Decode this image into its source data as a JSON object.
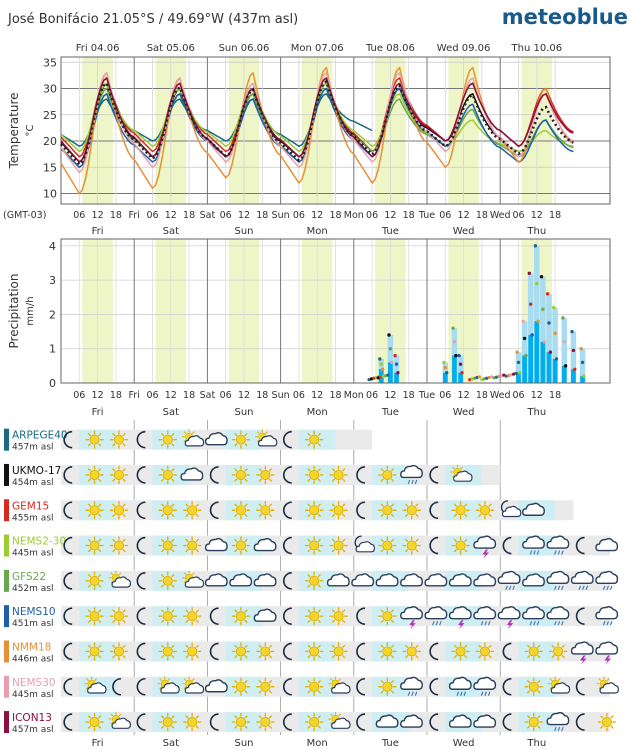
{
  "header": {
    "location": "José Bonifácio",
    "coords": "21.05°S / 49.69°W (437m asl)",
    "brand": "meteoblue",
    "timezone": "(GMT-03)"
  },
  "days": [
    {
      "full": "Fri 04.06",
      "short": "Fri"
    },
    {
      "full": "Sat 05.06",
      "short": "Sat"
    },
    {
      "full": "Sun 06.06",
      "short": "Sun"
    },
    {
      "full": "Mon 07.06",
      "short": "Mon"
    },
    {
      "full": "Tue 08.06",
      "short": "Tue"
    },
    {
      "full": "Wed 09.06",
      "short": "Wed"
    },
    {
      "full": "Thu 10.06",
      "short": "Thu"
    }
  ],
  "hour_labels": [
    "06",
    "12",
    "18"
  ],
  "models": [
    {
      "name": "ARPEGE40",
      "elev": "457m asl",
      "color": "#1a6a80",
      "hours": 102
    },
    {
      "name": "UKMO-17",
      "elev": "454m asl",
      "color": "#111111",
      "hours": 144
    },
    {
      "name": "GEM15",
      "elev": "455m asl",
      "color": "#d42a20",
      "hours": 168
    },
    {
      "name": "NEMS2-30",
      "elev": "445m asl",
      "color": "#9acd32",
      "hours": 180
    },
    {
      "name": "GFS22",
      "elev": "452m asl",
      "color": "#6aa84f",
      "hours": 180
    },
    {
      "name": "NEMS10",
      "elev": "451m asl",
      "color": "#1f5fa8",
      "hours": 180
    },
    {
      "name": "NMM18",
      "elev": "446m asl",
      "color": "#e69138",
      "hours": 180
    },
    {
      "name": "NEMS30",
      "elev": "445m asl",
      "color": "#e8a0b0",
      "hours": 180
    },
    {
      "name": "ICON13",
      "elev": "457m asl",
      "color": "#8b1040",
      "hours": 180
    }
  ],
  "chart_data": [
    {
      "type": "line",
      "ylabel": "Temperature",
      "yunit": "°C",
      "ylim": [
        8,
        36
      ],
      "yticks": [
        10,
        15,
        20,
        25,
        30,
        35
      ],
      "x_unit": "hours from Fri 04.06 00:00",
      "xlim": [
        0,
        180
      ],
      "daily_min_max": [
        {
          "day": "Fri 04.06",
          "min": 16,
          "max": 31
        },
        {
          "day": "Sat 05.06",
          "min": 17,
          "max": 30
        },
        {
          "day": "Sun 06.06",
          "min": 17,
          "max": 29
        },
        {
          "day": "Mon 07.06",
          "min": 17,
          "max": 30
        },
        {
          "day": "Tue 08.06",
          "min": 18,
          "max": 31
        },
        {
          "day": "Wed 09.06",
          "min": 19,
          "max": 30
        },
        {
          "day": "Thu 10.06",
          "min": 18,
          "max": 27
        }
      ],
      "series": [
        {
          "name": "ARPEGE40",
          "color": "#1a6a80",
          "mins": [
            19,
            20,
            20,
            19,
            22,
            21,
            18
          ],
          "maxs": [
            28,
            28,
            28,
            29,
            28,
            25,
            22
          ]
        },
        {
          "name": "UKMO-17",
          "color": "#111111",
          "mins": [
            16,
            17,
            17,
            17,
            18,
            20,
            18
          ],
          "maxs": [
            31,
            30,
            29,
            31,
            30,
            29,
            28
          ]
        },
        {
          "name": "GEM15",
          "color": "#d42a20",
          "mins": [
            17,
            18,
            18,
            17,
            18,
            20,
            19
          ],
          "maxs": [
            32,
            31,
            30,
            32,
            32,
            31,
            30
          ]
        },
        {
          "name": "NEMS2-30",
          "color": "#9acd32",
          "mins": [
            18,
            19,
            19,
            18,
            19,
            19,
            18
          ],
          "maxs": [
            31,
            30,
            30,
            31,
            29,
            24,
            22
          ]
        },
        {
          "name": "GFS22",
          "color": "#6aa84f",
          "mins": [
            15,
            17,
            17,
            16,
            18,
            19,
            17
          ],
          "maxs": [
            30,
            29,
            29,
            30,
            28,
            26,
            24
          ]
        },
        {
          "name": "NEMS10",
          "color": "#1f5fa8",
          "mins": [
            15,
            16,
            17,
            16,
            17,
            19,
            16
          ],
          "maxs": [
            29,
            29,
            28,
            30,
            30,
            27,
            24
          ]
        },
        {
          "name": "NMM18",
          "color": "#e69138",
          "mins": [
            10,
            11,
            13,
            12,
            12,
            15,
            16
          ],
          "maxs": [
            33,
            32,
            33,
            34,
            34,
            34,
            30
          ]
        },
        {
          "name": "NEMS30",
          "color": "#e8a0b0",
          "mins": [
            14,
            15,
            16,
            15,
            16,
            18,
            17
          ],
          "maxs": [
            33,
            32,
            31,
            33,
            33,
            32,
            29
          ]
        },
        {
          "name": "ICON13",
          "color": "#8b1040",
          "mins": [
            16,
            17,
            17,
            17,
            17,
            20,
            19
          ],
          "maxs": [
            32,
            31,
            30,
            32,
            31,
            31,
            29
          ]
        }
      ]
    },
    {
      "type": "bar",
      "ylabel": "Precipitation",
      "yunit": "mm/h",
      "ylim": [
        0,
        4.2
      ],
      "yticks": [
        0,
        1,
        2,
        3,
        4
      ],
      "x_unit": "hours from Fri 04.06 00:00",
      "events": [
        {
          "hour": 105,
          "low": 0.4,
          "high": 0.7
        },
        {
          "hour": 108,
          "low": 0.6,
          "high": 1.4
        },
        {
          "hour": 110,
          "low": 0.3,
          "high": 0.8
        },
        {
          "hour": 126,
          "low": 0.3,
          "high": 0.6
        },
        {
          "hour": 129,
          "low": 0.8,
          "high": 1.6
        },
        {
          "hour": 131,
          "low": 0.3,
          "high": 0.8
        },
        {
          "hour": 150,
          "low": 0.3,
          "high": 0.9
        },
        {
          "hour": 152,
          "low": 0.8,
          "high": 1.8
        },
        {
          "hour": 154,
          "low": 1.4,
          "high": 3.2
        },
        {
          "hour": 156,
          "low": 1.8,
          "high": 4.0
        },
        {
          "hour": 158,
          "low": 1.2,
          "high": 3.1
        },
        {
          "hour": 160,
          "low": 0.9,
          "high": 2.6
        },
        {
          "hour": 162,
          "low": 0.7,
          "high": 2.2
        },
        {
          "hour": 165,
          "low": 0.5,
          "high": 1.9
        },
        {
          "hour": 168,
          "low": 0.4,
          "high": 1.5
        },
        {
          "hour": 171,
          "low": 0.2,
          "high": 1.0
        }
      ]
    }
  ],
  "weather_rows": [
    {
      "model": "ARPEGE40",
      "icons": [
        "moon",
        "sun",
        "sun",
        "moon",
        "sun",
        "partly",
        "cloud",
        "sun",
        "partly",
        "moon",
        "sun"
      ]
    },
    {
      "model": "UKMO-17",
      "icons": [
        "moon",
        "sun",
        "sun",
        "moon",
        "sun",
        "cloud",
        "moon",
        "sun",
        "sun",
        "moon",
        "sun",
        "sun",
        "moon",
        "sun",
        "rain",
        "moon",
        "partly"
      ]
    },
    {
      "model": "GEM15",
      "icons": [
        "moon",
        "sun",
        "sun",
        "moon",
        "sun",
        "sun",
        "moon",
        "sun",
        "sun",
        "moon",
        "sun",
        "sun",
        "moon",
        "sun",
        "sun",
        "moon",
        "sun",
        "sun",
        "nightcloud",
        "cloud"
      ]
    },
    {
      "model": "NEMS2-30",
      "icons": [
        "moon",
        "sun",
        "sun",
        "moon",
        "sun",
        "sun",
        "cloud",
        "sun",
        "cloud",
        "moon",
        "sun",
        "sun",
        "nightcloud",
        "sun",
        "sun",
        "moon",
        "sun",
        "storm",
        "moon",
        "rain",
        "rain",
        "moon",
        "cloud"
      ]
    },
    {
      "model": "GFS22",
      "icons": [
        "moon",
        "sun",
        "partly",
        "moon",
        "sun",
        "partly",
        "cloud",
        "cloud",
        "cloud",
        "moon",
        "sun",
        "cloud",
        "cloud",
        "cloud",
        "cloud",
        "cloud",
        "cloud",
        "cloud",
        "rain",
        "cloud",
        "rain",
        "rain",
        "rain"
      ]
    },
    {
      "model": "NEMS10",
      "icons": [
        "moon",
        "sun",
        "sun",
        "moon",
        "sun",
        "sun",
        "moon",
        "sun",
        "cloud",
        "moon",
        "sun",
        "sun",
        "moon",
        "sun",
        "storm",
        "rain",
        "storm",
        "rain",
        "storm",
        "rain",
        "rain",
        "moon",
        "rain"
      ]
    },
    {
      "model": "NMM18",
      "icons": [
        "moon",
        "sun",
        "sun",
        "moon",
        "sun",
        "sun",
        "moon",
        "sun",
        "sun",
        "moon",
        "sun",
        "sun",
        "moon",
        "sun",
        "sun",
        "moon",
        "sun",
        "sun",
        "moon",
        "sun",
        "sun",
        "storm",
        "storm"
      ]
    },
    {
      "model": "NEMS30",
      "icons": [
        "moon",
        "partly",
        "moon",
        "moon",
        "partly",
        "partly",
        "cloud",
        "sun",
        "sun",
        "moon",
        "sun",
        "partly",
        "moon",
        "sun",
        "rain",
        "moon",
        "rain",
        "rain",
        "moon",
        "sun",
        "partly",
        "moon",
        "partly"
      ]
    },
    {
      "model": "ICON13",
      "icons": [
        "moon",
        "sun",
        "partly",
        "moon",
        "sun",
        "sun",
        "moon",
        "sun",
        "sun",
        "moon",
        "sun",
        "partly",
        "moon",
        "cloud",
        "cloud",
        "moon",
        "cloud",
        "cloud",
        "moon",
        "sun",
        "rain",
        "moon",
        "sun"
      ]
    }
  ]
}
